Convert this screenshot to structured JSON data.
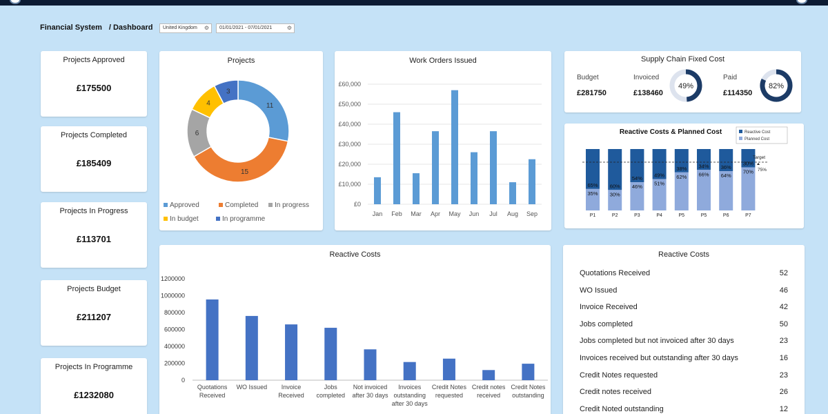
{
  "header": {
    "app": "Financial System",
    "page": "/ Dashboard"
  },
  "filters": {
    "country": "United Kingdom",
    "date_range": "01/01/2021 - 07/01/2021",
    "icon": "gear-icon"
  },
  "kpis": [
    {
      "title": "Projects Approved",
      "value": "£175500"
    },
    {
      "title": "Projects Completed",
      "value": "£185409"
    },
    {
      "title": "Projects In Progress",
      "value": "£113701"
    },
    {
      "title": "Projects Budget",
      "value": "£211207"
    },
    {
      "title": "Projects In Programme",
      "value": "£1232080"
    }
  ],
  "projects": {
    "title": "Projects",
    "chart_data": {
      "type": "pie",
      "categories": [
        "Approved",
        "Completed",
        "In progress",
        "In budget",
        "In programme"
      ],
      "values": [
        11,
        15,
        6,
        4,
        3
      ],
      "colors": [
        "#5b9bd5",
        "#ed7d31",
        "#a5a5a5",
        "#ffc000",
        "#4472c4"
      ]
    }
  },
  "work_orders": {
    "title": "Work Orders Issued",
    "chart_data": {
      "type": "bar",
      "categories": [
        "Jan",
        "Feb",
        "Mar",
        "Apr",
        "May",
        "Jun",
        "Jul",
        "Aug",
        "Sep"
      ],
      "values": [
        13500,
        46000,
        15500,
        36500,
        57000,
        26000,
        36500,
        11000,
        22500
      ],
      "yticks": [
        "£0",
        "£10,000",
        "£20,000",
        "£30,000",
        "£40,000",
        "£50,000",
        "£60,000"
      ],
      "ylim": [
        0,
        60000
      ],
      "color": "#5b9bd5"
    }
  },
  "supply_chain": {
    "title": "Supply Chain Fixed Cost",
    "budget_label": "Budget",
    "budget_value": "£281750",
    "invoiced_label": "Invoiced",
    "invoiced_value": "£138460",
    "paid_label": "Paid",
    "paid_value": "£114350",
    "invoiced_pct": 49,
    "invoiced_pct_label": "49%",
    "paid_pct": 82,
    "paid_pct_label": "82%"
  },
  "reactive_planned": {
    "title": "Reactive Costs & Planned Cost",
    "chart_data": {
      "type": "bar",
      "stacked": true,
      "categories": [
        "P1",
        "P2",
        "P3",
        "P4",
        "P5",
        "P5",
        "P6",
        "P7"
      ],
      "series": [
        {
          "name": "Reactive Cost",
          "values": [
            65,
            60,
            54,
            49,
            38,
            34,
            36,
            30
          ],
          "labels": [
            "65%",
            "60%",
            "54%",
            "49%",
            "38%",
            "34%",
            "36%",
            "30%"
          ],
          "color": "#1f5a9c"
        },
        {
          "name": "Planned Cost",
          "values": [
            35,
            30,
            46,
            51,
            62,
            66,
            64,
            70
          ],
          "labels": [
            "35%",
            "30%",
            "46%",
            "51%",
            "62%",
            "66%",
            "64%",
            "70%"
          ],
          "color": "#8faadc"
        }
      ],
      "target_label": "Target",
      "target_value": "75%"
    }
  },
  "reactive_costs_chart": {
    "title": "Reactive Costs",
    "chart_data": {
      "type": "bar",
      "categories": [
        [
          "Quotations",
          "Received"
        ],
        [
          "WO Issued"
        ],
        [
          "Invoice",
          "Received"
        ],
        [
          "Jobs",
          "completed"
        ],
        [
          "Not invoiced",
          "after 30 days"
        ],
        [
          "Invoices",
          "outstanding",
          "after 30 days"
        ],
        [
          "Credit Notes",
          "requested"
        ],
        [
          "Credit notes",
          "received"
        ],
        [
          "Credit Notes",
          "outstanding"
        ]
      ],
      "values": [
        955000,
        760000,
        660000,
        620000,
        365000,
        215000,
        255000,
        120000,
        195000
      ],
      "yticks": [
        "0",
        "200000",
        "400000",
        "600000",
        "800000",
        "1000000",
        "1200000"
      ],
      "ylim": [
        0,
        1200000
      ],
      "color": "#4472c4"
    }
  },
  "reactive_costs_table": {
    "title": "Reactive Costs",
    "rows": [
      {
        "label": "Quotations Received",
        "value": "52"
      },
      {
        "label": "WO Issued",
        "value": "46"
      },
      {
        "label": "Invoice Received",
        "value": "42"
      },
      {
        "label": "Jobs completed",
        "value": "50"
      },
      {
        "label": "Jobs completed but not invoiced after 30 days",
        "value": "23"
      },
      {
        "label": "Invoices received but outstanding after 30 days",
        "value": "16"
      },
      {
        "label": "Credit Notes requested",
        "value": "23"
      },
      {
        "label": "Credit notes received",
        "value": "26"
      },
      {
        "label": "Credit Noted outstanding",
        "value": "12"
      }
    ]
  }
}
